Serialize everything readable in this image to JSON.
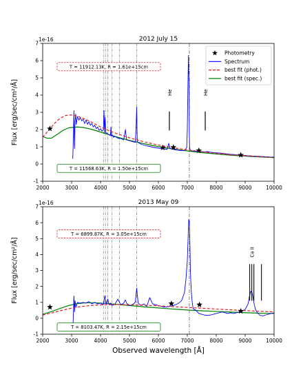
{
  "figure": {
    "xlabel": "Observed wavelength [Å]",
    "colors": {
      "spectrum": "#0000ff",
      "phot_fit": "#e41a1c",
      "spec_fit": "#008000",
      "photometry": "#000000",
      "axis": "#000000"
    }
  },
  "chart_data": [
    {
      "type": "line",
      "title": "2012 July 15",
      "ylabel": "Flux [erg/sec/cm²/Å]",
      "offset_text": "1e-16",
      "xlim": [
        2000,
        10000
      ],
      "ylim": [
        -1,
        7
      ],
      "xticks": [
        2000,
        3000,
        4000,
        5000,
        6000,
        7000,
        8000,
        9000,
        10000
      ],
      "yticks": [
        -1,
        0,
        1,
        2,
        3,
        4,
        5,
        6,
        7
      ],
      "legend": {
        "placement": "top-right",
        "entries": [
          "Photometry",
          "Spectrum",
          "best fit (phot.)",
          "best fit (spec.)"
        ]
      },
      "annotations": {
        "phot_fit_box": "T = 11912.13K, R = 1.61e+15cm",
        "spec_fit_box": "T = 11568.63K, R = 1.50e+15cm"
      },
      "line_labels": [
        {
          "text": "He",
          "wavelength": 6380
        },
        {
          "text": "He",
          "wavelength": 7620
        }
      ],
      "reference_lines": [
        4100,
        4170,
        4250,
        4400,
        4650,
        5250,
        7070
      ],
      "series": [
        {
          "name": "Photometry",
          "style": "marker",
          "x": [
            2250,
            6150,
            6520,
            7400,
            8850
          ],
          "y": [
            2.05,
            0.95,
            0.97,
            0.78,
            0.52
          ]
        },
        {
          "name": "best fit (phot.)",
          "style": "dashed",
          "x": [
            2000,
            2200,
            2400,
            2600,
            2800,
            3000,
            3200,
            3400,
            3600,
            3800,
            4000,
            4300,
            4600,
            5000,
            5500,
            6000,
            6500,
            7000,
            7500,
            8000,
            8500,
            9000,
            9500,
            10000
          ],
          "y": [
            1.55,
            1.95,
            2.35,
            2.65,
            2.82,
            2.85,
            2.78,
            2.65,
            2.5,
            2.33,
            2.15,
            1.93,
            1.74,
            1.52,
            1.29,
            1.1,
            0.95,
            0.82,
            0.71,
            0.62,
            0.54,
            0.48,
            0.43,
            0.38
          ]
        },
        {
          "name": "best fit (spec.)",
          "style": "solid",
          "x": [
            2000,
            2150,
            2300,
            2500,
            2700,
            2900,
            3000,
            3200,
            3400,
            3600,
            3800,
            4000,
            4300,
            4600,
            5000,
            5500,
            6000,
            6500,
            7000,
            7500,
            8000,
            8500,
            9000,
            9500,
            10000
          ],
          "y": [
            1.6,
            1.5,
            1.5,
            1.72,
            1.95,
            2.1,
            2.12,
            2.15,
            2.12,
            2.05,
            1.96,
            1.85,
            1.7,
            1.55,
            1.37,
            1.18,
            1.01,
            0.87,
            0.76,
            0.66,
            0.58,
            0.51,
            0.46,
            0.41,
            0.37
          ]
        },
        {
          "name": "Spectrum",
          "style": "solid",
          "x": [
            3040,
            3060,
            3080,
            3100,
            3120,
            3140,
            3160,
            3200,
            3250,
            3300,
            3350,
            3400,
            3450,
            3500,
            3550,
            3600,
            3650,
            3700,
            3750,
            3800,
            3850,
            3900,
            3950,
            4000,
            4050,
            4100,
            4120,
            4140,
            4160,
            4180,
            4200,
            4250,
            4300,
            4340,
            4360,
            4380,
            4400,
            4450,
            4500,
            4600,
            4700,
            4800,
            4861,
            4900,
            5000,
            5100,
            5200,
            5230,
            5250,
            5270,
            5300,
            5400,
            5500,
            5600,
            5700,
            5800,
            5900,
            6000,
            6100,
            6200,
            6300,
            6360,
            6400,
            6500,
            6600,
            6700,
            6800,
            6900,
            6980,
            7000,
            7020,
            7040,
            7060,
            7070,
            7080,
            7100,
            7120,
            7150,
            7200,
            7300,
            7400,
            7500,
            7600,
            7700,
            7800,
            7900,
            8000,
            8100,
            8200,
            8300,
            8400,
            8500,
            8600,
            8700,
            8800,
            8900,
            9000,
            9100,
            9200,
            9300,
            9400,
            9500,
            9600,
            9700,
            9800,
            9900,
            10000
          ],
          "y": [
            0.3,
            1.5,
            3.1,
            0.9,
            2.5,
            2.9,
            2.3,
            2.75,
            2.55,
            2.7,
            2.5,
            2.6,
            2.35,
            2.55,
            2.3,
            2.45,
            2.25,
            2.35,
            2.15,
            2.25,
            2.05,
            2.15,
            1.95,
            2.05,
            1.9,
            2.0,
            3.1,
            1.8,
            2.7,
            1.85,
            1.8,
            1.75,
            1.7,
            1.65,
            2.15,
            1.6,
            1.7,
            1.55,
            1.6,
            1.5,
            1.48,
            1.4,
            2.0,
            1.4,
            1.35,
            1.3,
            1.25,
            2.2,
            3.3,
            1.3,
            1.25,
            1.15,
            1.1,
            1.05,
            1.02,
            0.98,
            0.95,
            0.92,
            0.9,
            0.88,
            0.85,
            1.2,
            0.9,
            0.85,
            0.82,
            0.8,
            0.78,
            0.78,
            0.95,
            2.0,
            4.5,
            6.3,
            4.5,
            1.6,
            0.95,
            0.8,
            0.78,
            0.76,
            0.75,
            0.74,
            0.73,
            0.72,
            0.7,
            0.72,
            0.68,
            0.66,
            0.65,
            0.64,
            0.62,
            0.6,
            0.58,
            0.56,
            0.55,
            0.53,
            0.52,
            0.5,
            0.49,
            0.48,
            0.47,
            0.45,
            0.45,
            0.44,
            0.43,
            0.42,
            0.41,
            0.4,
            0.4
          ]
        }
      ]
    },
    {
      "type": "line",
      "title": "2013 May 09",
      "ylabel": "Flux [erg/sec/cm²/Å]",
      "offset_text": "1e-16",
      "xlim": [
        2000,
        10000
      ],
      "ylim": [
        -1,
        7
      ],
      "xticks": [
        2000,
        3000,
        4000,
        5000,
        6000,
        7000,
        8000,
        9000,
        10000
      ],
      "yticks": [
        -1,
        0,
        1,
        2,
        3,
        4,
        5,
        6,
        7
      ],
      "annotations": {
        "phot_fit_box": "T = 6899.87K, R = 3.05e+15cm",
        "spec_fit_box": "T = 8103.47K, R = 2.15e+15cm"
      },
      "line_labels": [
        {
          "text": "Ca II",
          "wavelength": 9230
        }
      ],
      "reference_lines": [
        4100,
        4170,
        4250,
        4400,
        4650,
        5250,
        7070
      ],
      "series": [
        {
          "name": "Photometry",
          "style": "marker",
          "x": [
            2250,
            6450,
            7420,
            8850
          ],
          "y": [
            0.7,
            0.92,
            0.85,
            0.45
          ]
        },
        {
          "name": "best fit (phot.)",
          "style": "dashed",
          "x": [
            2000,
            2300,
            2600,
            2900,
            3200,
            3500,
            3800,
            4100,
            4500,
            5000,
            5500,
            6000,
            6500,
            7000,
            7500,
            8000,
            8500,
            9000,
            9500,
            10000
          ],
          "y": [
            0.2,
            0.33,
            0.47,
            0.6,
            0.7,
            0.77,
            0.82,
            0.85,
            0.86,
            0.85,
            0.82,
            0.78,
            0.73,
            0.68,
            0.63,
            0.58,
            0.53,
            0.48,
            0.44,
            0.4
          ]
        },
        {
          "name": "best fit (spec.)",
          "style": "solid",
          "x": [
            2000,
            2300,
            2600,
            2900,
            3200,
            3500,
            3800,
            4100,
            4500,
            5000,
            5500,
            6000,
            6500,
            7000,
            7500,
            8000,
            8500,
            9000,
            9500,
            10000
          ],
          "y": [
            0.25,
            0.42,
            0.62,
            0.8,
            0.92,
            0.97,
            0.97,
            0.94,
            0.88,
            0.8,
            0.72,
            0.65,
            0.58,
            0.52,
            0.47,
            0.43,
            0.39,
            0.35,
            0.32,
            0.3
          ]
        },
        {
          "name": "Spectrum",
          "style": "solid",
          "x": [
            3040,
            3060,
            3080,
            3100,
            3120,
            3150,
            3200,
            3300,
            3400,
            3500,
            3600,
            3700,
            3800,
            3900,
            4000,
            4100,
            4150,
            4200,
            4250,
            4300,
            4350,
            4400,
            4500,
            4600,
            4700,
            4800,
            4861,
            4900,
            5000,
            5100,
            5200,
            5250,
            5300,
            5400,
            5500,
            5600,
            5700,
            5800,
            5900,
            6000,
            6100,
            6200,
            6300,
            6400,
            6500,
            6600,
            6700,
            6800,
            6900,
            6950,
            7000,
            7030,
            7050,
            7070,
            7090,
            7110,
            7140,
            7170,
            7200,
            7300,
            7400,
            7500,
            7600,
            7700,
            7800,
            7900,
            8000,
            8100,
            8200,
            8300,
            8400,
            8500,
            8600,
            8700,
            8800,
            8900,
            9000,
            9100,
            9150,
            9200,
            9250,
            9300,
            9350,
            9400,
            9500,
            9600,
            9700,
            9800,
            9900,
            10000
          ],
          "y": [
            -0.8,
            0.2,
            1.4,
            0.4,
            1.1,
            0.7,
            1.0,
            0.95,
            1.0,
            0.95,
            1.05,
            0.9,
            1.0,
            0.9,
            0.95,
            0.85,
            1.4,
            0.9,
            1.2,
            0.85,
            0.95,
            0.8,
            0.9,
            1.2,
            0.85,
            0.95,
            1.15,
            0.95,
            0.8,
            0.85,
            1.0,
            1.9,
            0.95,
            0.8,
            0.9,
            0.75,
            1.3,
            0.9,
            0.85,
            0.8,
            0.75,
            0.7,
            0.72,
            0.75,
            0.8,
            0.85,
            0.95,
            1.1,
            1.6,
            2.4,
            3.6,
            5.2,
            6.2,
            6.1,
            4.6,
            2.8,
            1.6,
            1.0,
            0.6,
            0.5,
            0.3,
            0.25,
            0.2,
            0.18,
            0.2,
            0.25,
            0.3,
            0.35,
            0.4,
            0.35,
            0.3,
            0.35,
            0.3,
            0.35,
            0.4,
            0.45,
            0.55,
            0.9,
            1.4,
            1.7,
            1.55,
            1.0,
            0.6,
            0.4,
            0.2,
            0.15,
            0.2,
            0.25,
            0.3,
            0.35
          ]
        }
      ]
    }
  ]
}
